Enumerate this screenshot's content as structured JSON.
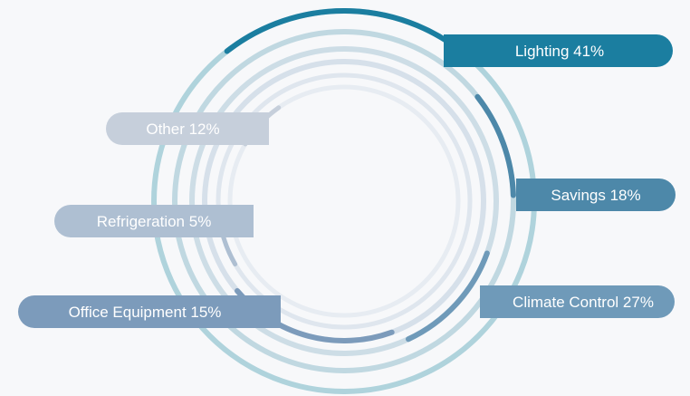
{
  "chart_data": {
    "type": "radial-bar",
    "series": [
      {
        "label": "Lighting 41%",
        "value": 41,
        "color": "#1b7ea0",
        "track": "#afd3dc"
      },
      {
        "label": "Savings 18%",
        "value": 18,
        "color": "#4d88a9",
        "track": "#c0d8e1"
      },
      {
        "label": "Climate Control 27%",
        "value": 27,
        "color": "#6f9ab9",
        "track": "#cddde6"
      },
      {
        "label": "Office Equipment 15%",
        "value": 15,
        "color": "#7c9bbb",
        "track": "#d6e0ea"
      },
      {
        "label": "Refrigeration 5%",
        "value": 5,
        "color": "#aebfd2",
        "track": "#dfe6ee"
      },
      {
        "label": "Other 12%",
        "value": 12,
        "color": "#c6cfdb",
        "track": "#e7ecf2"
      }
    ]
  }
}
